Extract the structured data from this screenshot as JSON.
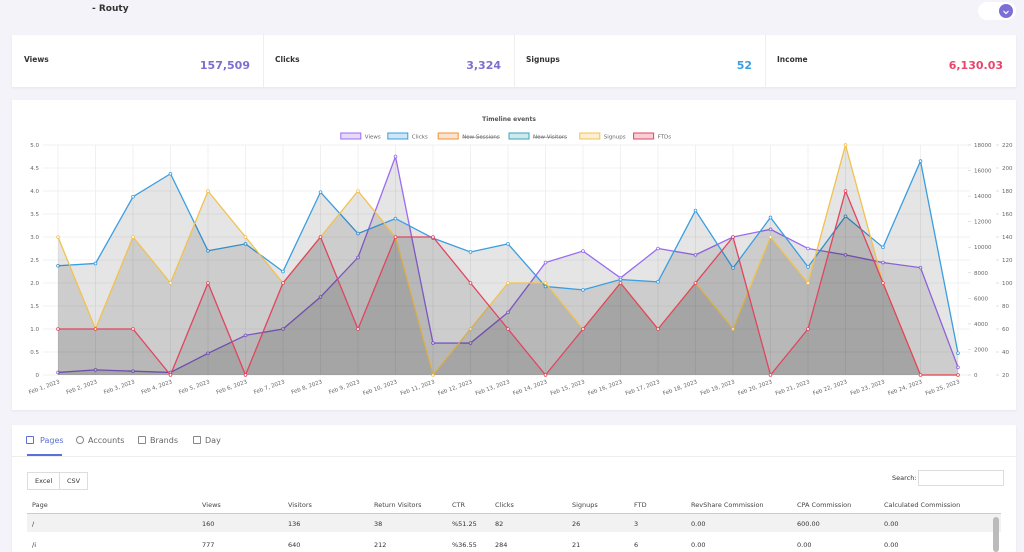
{
  "header": {
    "title": "- Routy"
  },
  "stats": [
    {
      "label": "Views",
      "value": "157,509",
      "color": "#7c6fd0"
    },
    {
      "label": "Clicks",
      "value": "3,324",
      "color": "#7c6fd0"
    },
    {
      "label": "Signups",
      "value": "52",
      "color": "#3b9ee0"
    },
    {
      "label": "Income",
      "value": "6,130.03",
      "color": "#e8456b"
    }
  ],
  "chart_data": {
    "type": "line",
    "title": "Timeline events",
    "categories": [
      "Feb 1, 2023",
      "Feb 2, 2023",
      "Feb 3, 2023",
      "Feb 4, 2023",
      "Feb 5, 2023",
      "Feb 6, 2023",
      "Feb 7, 2023",
      "Feb 8, 2023",
      "Feb 9, 2023",
      "Feb 10, 2023",
      "Feb 11, 2023",
      "Feb 12, 2023",
      "Feb 13, 2023",
      "Feb 14, 2023",
      "Feb 15, 2023",
      "Feb 16, 2023",
      "Feb 17, 2023",
      "Feb 18, 2023",
      "Feb 19, 2023",
      "Feb 20, 2023",
      "Feb 21, 2023",
      "Feb 22, 2023",
      "Feb 23, 2023",
      "Feb 24, 2023",
      "Feb 25, 2023"
    ],
    "series": [
      {
        "name": "Views",
        "color": "#9b6cf0",
        "axis": "y2",
        "values": [
          200,
          400,
          300,
          200,
          1700,
          3100,
          3600,
          6100,
          9200,
          17100,
          2500,
          2500,
          4900,
          8800,
          9700,
          7600,
          9900,
          9400,
          10800,
          11400,
          9900,
          9400,
          8800,
          8400,
          600
        ]
      },
      {
        "name": "Clicks",
        "color": "#3b9ee0",
        "axis": "y3",
        "values": [
          115,
          117,
          175,
          195,
          128,
          134,
          110,
          179,
          143,
          156,
          139,
          127,
          134,
          97,
          94,
          103,
          101,
          163,
          113,
          157,
          114,
          158,
          131,
          206,
          39
        ]
      },
      {
        "name": "New Sessions",
        "color": "#f0913b",
        "hidden": true
      },
      {
        "name": "New Visitors",
        "color": "#3aa6b9",
        "hidden": true
      },
      {
        "name": "Signups",
        "color": "#f2c14e",
        "values": [
          3,
          1,
          3,
          2,
          4,
          3,
          2,
          3,
          4,
          3,
          0,
          1,
          2,
          2,
          1,
          2,
          1,
          2,
          1,
          3,
          2,
          5,
          2,
          0,
          0
        ]
      },
      {
        "name": "FTDs",
        "color": "#e0455f",
        "values": [
          1,
          1,
          1,
          0,
          2,
          0,
          2,
          3,
          1,
          3,
          3,
          2,
          1,
          0,
          1,
          2,
          1,
          2,
          3,
          0,
          1,
          4,
          2,
          0,
          0
        ]
      }
    ],
    "ylim": [
      0,
      5
    ],
    "yticks": [
      0,
      0.5,
      {
        "value": 1,
        "label": "1.0"
      },
      1.5,
      {
        "value": 2,
        "label": "2.0"
      },
      2.5,
      {
        "value": 3,
        "label": "3.0"
      },
      3.5,
      {
        "value": 4,
        "label": "4.0"
      },
      4.5,
      {
        "value": 5,
        "label": "5.0"
      }
    ],
    "y2lim": [
      0,
      18000
    ],
    "y2ticks": [
      0,
      2000,
      4000,
      6000,
      8000,
      10000,
      12000,
      14000,
      16000,
      18000
    ],
    "y3lim": [
      20,
      220
    ],
    "y3ticks": [
      20,
      40,
      60,
      80,
      100,
      120,
      140,
      160,
      180,
      200,
      220
    ],
    "grid": true,
    "legend": "top"
  },
  "tabs": [
    "Pages",
    "Accounts",
    "Brands",
    "Day"
  ],
  "buttons": [
    "Excel",
    "CSV"
  ],
  "search_label": "Search:",
  "table": {
    "columns": [
      "Page",
      "Views",
      "Visitors",
      "Return Visitors",
      "CTR",
      "Clicks",
      "Signups",
      "FTD",
      "RevShare Commission",
      "CPA Commission",
      "Calculated Commission"
    ],
    "rows": [
      [
        "/",
        160,
        136,
        38,
        "%51.25",
        82,
        26,
        3,
        "0.00",
        "600.00",
        "0.00"
      ],
      [
        "/i",
        777,
        640,
        212,
        "%36.55",
        284,
        21,
        6,
        "0.00",
        "0.00",
        "0.00"
      ]
    ]
  }
}
